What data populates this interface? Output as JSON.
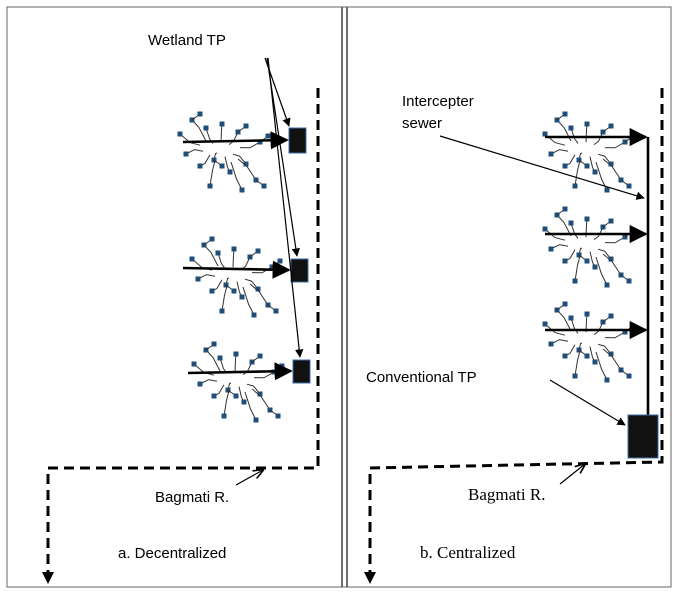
{
  "panels": [
    {
      "labels": {
        "treatment": "Wetland TP",
        "river": "Bagmati R.",
        "caption": "a. Decentralized"
      }
    },
    {
      "labels": {
        "sewer": [
          "Intercepter",
          "sewer"
        ],
        "treatment": "Conventional TP",
        "river": "Bagmati R.",
        "caption": "b. Centralized"
      }
    }
  ]
}
